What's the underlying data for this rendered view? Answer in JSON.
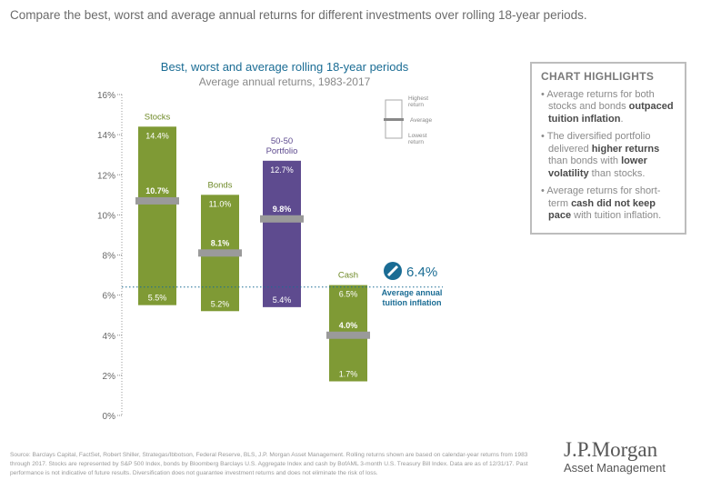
{
  "header": "Compare the best, worst and average annual returns for different investments over rolling 18-year periods.",
  "chart_data": {
    "type": "floating-bar",
    "title": "Best, worst and average rolling 18-year periods",
    "subtitle": "Average annual returns, 1983-2017",
    "ylim": [
      0,
      16
    ],
    "yticks": [
      "0%",
      "2%",
      "4%",
      "6%",
      "8%",
      "10%",
      "12%",
      "14%",
      "16%"
    ],
    "categories": [
      "Stocks",
      "Bonds",
      "50-50 Portfolio",
      "Cash"
    ],
    "series": [
      {
        "label": "Stocks",
        "high": 14.4,
        "avg": 10.7,
        "low": 5.5,
        "high_label": "14.4%",
        "avg_label": "10.7%",
        "low_label": "5.5%",
        "color": "#7f9a35"
      },
      {
        "label": "Bonds",
        "high": 11.0,
        "avg": 8.1,
        "low": 5.2,
        "high_label": "11.0%",
        "avg_label": "8.1%",
        "low_label": "5.2%",
        "color": "#7f9a35"
      },
      {
        "label": "50-50 Portfolio",
        "high": 12.7,
        "avg": 9.8,
        "low": 5.4,
        "high_label": "12.7%",
        "avg_label": "9.8%",
        "low_label": "5.4%",
        "color": "#5e4b8f"
      },
      {
        "label": "Cash",
        "high": 6.5,
        "avg": 4.0,
        "low": 1.7,
        "high_label": "6.5%",
        "avg_label": "4.0%",
        "low_label": "1.7%",
        "color": "#7f9a35"
      }
    ],
    "reference_line": {
      "value": 6.4,
      "label": "6.4%",
      "caption": "Average annual tuition inflation",
      "color": "#1a6c94",
      "icon": "diploma-icon"
    },
    "legend": {
      "highest": "Highest return",
      "average": "Average",
      "lowest": "Lowest return"
    }
  },
  "highlights": {
    "title": "CHART HIGHLIGHTS"
  },
  "source": "Source: Barclays Capital, FactSet, Robert Shiller, Strategas/Ibbotson, Federal Reserve, BLS, J.P. Morgan Asset Management. Rolling returns shown are based on calendar-year returns from 1983 through 2017. Stocks are represented by S&P 500 Index, bonds by Bloomberg Barclays U.S. Aggregate Index and cash by BofAML 3-month U.S. Treasury Bill Index. Data are as of 12/31/17. Past performance is not indicative of future results. Diversification does not guarantee investment returns and does not eliminate the risk of loss.",
  "logo": {
    "line1": "J.P.Morgan",
    "line2": "Asset Management"
  }
}
